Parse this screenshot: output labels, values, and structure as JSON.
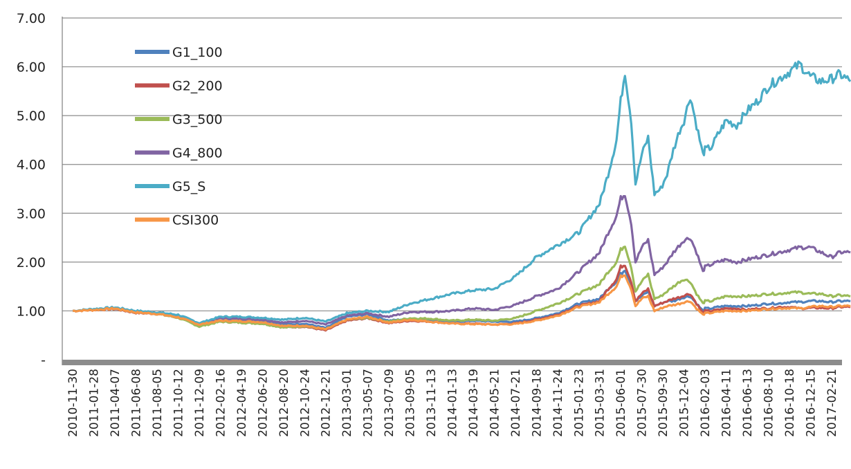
{
  "chart_data": {
    "type": "line",
    "title": "",
    "xlabel": "",
    "ylabel": "",
    "ylim": [
      0,
      7
    ],
    "y_ticks": [
      "-",
      "1.00",
      "2.00",
      "3.00",
      "4.00",
      "5.00",
      "6.00",
      "7.00"
    ],
    "x_tick_labels": [
      "2010-11-30",
      "2011-01-28",
      "2011-04-07",
      "2011-06-08",
      "2011-08-05",
      "2011-10-12",
      "2011-12-09",
      "2012-02-16",
      "2012-04-19",
      "2012-06-20",
      "2012-08-20",
      "2012-10-24",
      "2012-12-21",
      "2013-03-01",
      "2013-05-07",
      "2013-07-09",
      "2013-09-05",
      "2013-11-13",
      "2014-01-13",
      "2014-03-19",
      "2014-05-21",
      "2014-07-21",
      "2014-09-18",
      "2014-11-24",
      "2015-01-23",
      "2015-03-31",
      "2015-06-01",
      "2015-07-30",
      "2015-09-30",
      "2015-12-04",
      "2016-02-03",
      "2016-04-11",
      "2016-06-13",
      "2016-08-10",
      "2016-10-18",
      "2016-12-15",
      "2017-02-21"
    ],
    "grid": true,
    "legend": "top-left",
    "x": [
      0,
      1,
      2,
      3,
      4,
      5,
      6,
      7,
      8,
      9,
      10,
      11,
      12,
      13,
      14,
      15,
      16,
      17,
      18,
      19,
      20,
      21,
      22,
      23,
      24,
      25,
      25.4,
      25.8,
      26,
      26.2,
      26.5,
      26.7,
      27,
      27.3,
      27.6,
      27.9,
      28.2,
      28.5,
      28.8,
      29,
      29.3,
      29.6,
      29.9,
      30,
      30.3,
      30.6,
      31,
      31.5,
      32,
      32.5,
      33,
      33.5,
      34,
      34.5,
      35,
      35.5,
      36,
      36.4,
      36.9
    ],
    "series": [
      {
        "name": "G1_100",
        "color": "#4f81bd",
        "values": [
          1.0,
          1.03,
          1.05,
          0.97,
          0.95,
          0.88,
          0.75,
          0.85,
          0.83,
          0.8,
          0.72,
          0.74,
          0.65,
          0.88,
          0.93,
          0.8,
          0.84,
          0.8,
          0.78,
          0.8,
          0.78,
          0.78,
          0.85,
          0.95,
          1.15,
          1.25,
          1.45,
          1.6,
          1.75,
          1.85,
          1.55,
          1.2,
          1.3,
          1.4,
          1.1,
          1.15,
          1.2,
          1.2,
          1.25,
          1.28,
          1.3,
          1.15,
          1.0,
          1.05,
          1.05,
          1.08,
          1.1,
          1.1,
          1.1,
          1.12,
          1.15,
          1.15,
          1.18,
          1.18,
          1.2,
          1.2,
          1.18,
          1.2,
          1.2
        ]
      },
      {
        "name": "G2_200",
        "color": "#c0504d",
        "values": [
          1.0,
          1.02,
          1.04,
          0.96,
          0.94,
          0.86,
          0.7,
          0.78,
          0.76,
          0.74,
          0.66,
          0.68,
          0.6,
          0.8,
          0.85,
          0.75,
          0.8,
          0.78,
          0.74,
          0.74,
          0.72,
          0.74,
          0.82,
          0.92,
          1.1,
          1.2,
          1.45,
          1.65,
          1.9,
          1.95,
          1.6,
          1.2,
          1.35,
          1.45,
          1.1,
          1.15,
          1.2,
          1.25,
          1.28,
          1.32,
          1.35,
          1.15,
          0.95,
          1.0,
          1.0,
          1.02,
          1.05,
          1.05,
          1.02,
          1.05,
          1.05,
          1.08,
          1.08,
          1.05,
          1.06,
          1.06,
          1.05,
          1.08,
          1.08
        ]
      },
      {
        "name": "G3_500",
        "color": "#9bbb59",
        "values": [
          1.0,
          1.03,
          1.05,
          0.97,
          0.94,
          0.86,
          0.68,
          0.78,
          0.76,
          0.74,
          0.66,
          0.69,
          0.62,
          0.82,
          0.86,
          0.78,
          0.85,
          0.84,
          0.8,
          0.82,
          0.8,
          0.85,
          1.0,
          1.15,
          1.35,
          1.55,
          1.8,
          2.0,
          2.25,
          2.35,
          1.9,
          1.4,
          1.6,
          1.75,
          1.25,
          1.3,
          1.4,
          1.5,
          1.6,
          1.65,
          1.6,
          1.35,
          1.15,
          1.2,
          1.2,
          1.25,
          1.3,
          1.3,
          1.3,
          1.32,
          1.35,
          1.35,
          1.38,
          1.38,
          1.35,
          1.35,
          1.3,
          1.32,
          1.3
        ]
      },
      {
        "name": "G4_800",
        "color": "#8064a2",
        "values": [
          1.0,
          1.03,
          1.06,
          0.98,
          0.95,
          0.9,
          0.72,
          0.85,
          0.84,
          0.82,
          0.76,
          0.8,
          0.72,
          0.9,
          0.95,
          0.88,
          0.98,
          0.98,
          1.0,
          1.05,
          1.02,
          1.12,
          1.3,
          1.45,
          1.8,
          2.2,
          2.6,
          2.95,
          3.3,
          3.4,
          2.8,
          2.0,
          2.3,
          2.45,
          1.75,
          1.85,
          2.0,
          2.2,
          2.35,
          2.45,
          2.5,
          2.2,
          1.8,
          1.9,
          1.95,
          2.0,
          2.05,
          2.0,
          2.05,
          2.1,
          2.15,
          2.2,
          2.25,
          2.3,
          2.3,
          2.2,
          2.1,
          2.2,
          2.2
        ]
      },
      {
        "name": "G5_S",
        "color": "#4bacc6",
        "values": [
          1.0,
          1.04,
          1.07,
          1.0,
          0.97,
          0.92,
          0.75,
          0.88,
          0.88,
          0.86,
          0.82,
          0.86,
          0.78,
          0.95,
          1.0,
          0.98,
          1.15,
          1.25,
          1.35,
          1.42,
          1.45,
          1.7,
          2.1,
          2.35,
          2.6,
          3.2,
          3.8,
          4.5,
          5.3,
          5.9,
          4.9,
          3.6,
          4.2,
          4.55,
          3.4,
          3.5,
          3.8,
          4.3,
          4.7,
          4.9,
          5.4,
          4.8,
          4.2,
          4.3,
          4.35,
          4.6,
          4.9,
          4.8,
          5.1,
          5.3,
          5.6,
          5.75,
          5.9,
          6.05,
          5.8,
          5.7,
          5.75,
          5.85,
          5.7
        ]
      },
      {
        "name": "CSI300",
        "color": "#f79646",
        "values": [
          1.0,
          1.02,
          1.05,
          0.97,
          0.94,
          0.87,
          0.72,
          0.8,
          0.79,
          0.77,
          0.69,
          0.7,
          0.62,
          0.82,
          0.88,
          0.76,
          0.82,
          0.78,
          0.74,
          0.73,
          0.72,
          0.73,
          0.8,
          0.9,
          1.08,
          1.18,
          1.35,
          1.5,
          1.7,
          1.75,
          1.45,
          1.1,
          1.25,
          1.3,
          1.0,
          1.05,
          1.1,
          1.12,
          1.15,
          1.18,
          1.2,
          1.05,
          0.92,
          0.95,
          0.96,
          0.98,
          1.0,
          1.0,
          1.0,
          1.02,
          1.04,
          1.05,
          1.06,
          1.05,
          1.08,
          1.1,
          1.08,
          1.1,
          1.1
        ]
      }
    ]
  }
}
